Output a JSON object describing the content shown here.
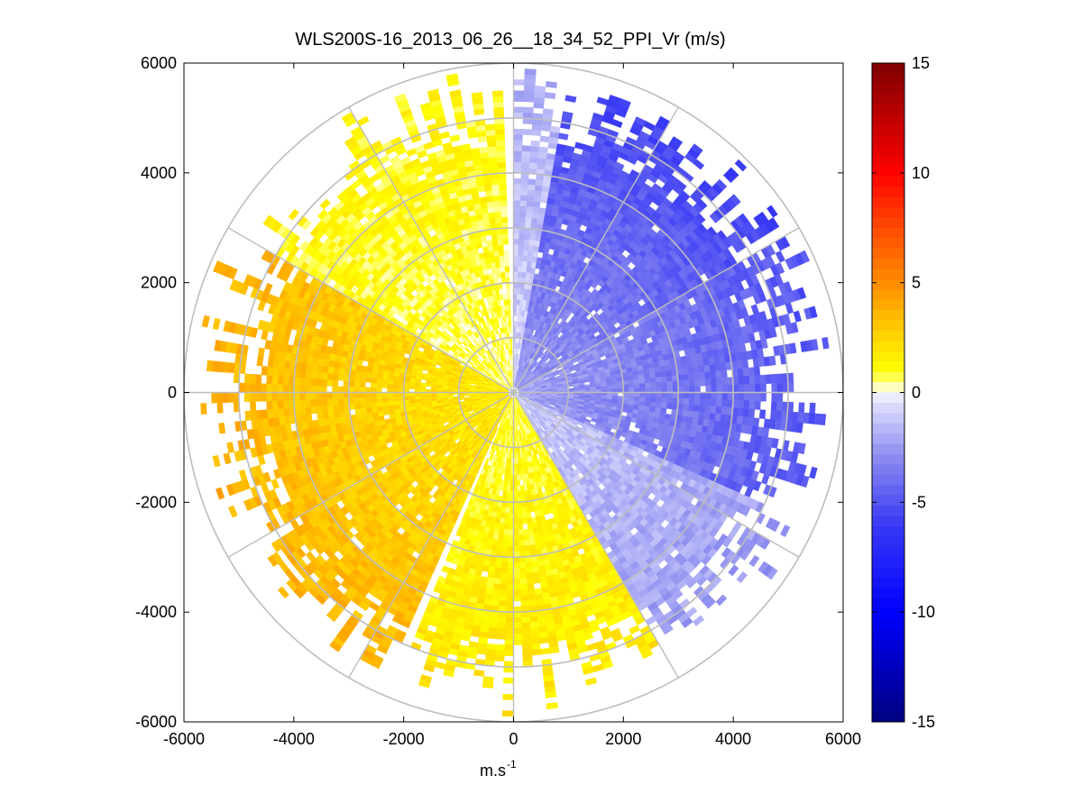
{
  "chart_data": {
    "type": "heatmap",
    "subtype": "polar-ppi-scan",
    "title": "WLS200S-16_2013_06_26__18_34_52_PPI_Vr (m/s)",
    "xlabel": "m.s",
    "xlabel_superscript": "-1",
    "ylabel": "",
    "xlim": [
      -6000,
      6000
    ],
    "ylim": [
      -6000,
      6000
    ],
    "x_ticks": [
      -6000,
      -4000,
      -2000,
      0,
      2000,
      4000,
      6000
    ],
    "y_ticks": [
      -6000,
      -4000,
      -2000,
      0,
      2000,
      4000,
      6000
    ],
    "x_tick_labels": [
      "-6000",
      "-4000",
      "-2000",
      "0",
      "2000",
      "4000",
      "6000"
    ],
    "y_tick_labels": [
      "-6000",
      "-4000",
      "-2000",
      "0",
      "2000",
      "4000",
      "6000"
    ],
    "grid": true,
    "polar_grid": {
      "ring_radii_m": [
        1000,
        2000,
        3000,
        4000,
        5000,
        6000
      ],
      "spoke_angles_deg": [
        0,
        30,
        60,
        90,
        120,
        150,
        180,
        210,
        240,
        270,
        300,
        330
      ]
    },
    "field": {
      "name": "Radial velocity Vr",
      "units": "m/s",
      "max_range_m": 5900,
      "gate_spacing_m": 100,
      "beam_width_deg": 2,
      "sector_mean_velocity": [
        {
          "az_start_deg": 0,
          "az_end_deg": 10,
          "mean_vr": -1.5
        },
        {
          "az_start_deg": 10,
          "az_end_deg": 60,
          "mean_vr": -4.5
        },
        {
          "az_start_deg": 60,
          "az_end_deg": 115,
          "mean_vr": -4.0
        },
        {
          "az_start_deg": 115,
          "az_end_deg": 150,
          "mean_vr": -2.0
        },
        {
          "az_start_deg": 150,
          "az_end_deg": 205,
          "mean_vr": 1.5
        },
        {
          "az_start_deg": 205,
          "az_end_deg": 300,
          "mean_vr": 3.0
        },
        {
          "az_start_deg": 300,
          "az_end_deg": 360,
          "mean_vr": 1.0
        }
      ],
      "data_gaps_az_deg": [
        [
          -2,
          0
        ],
        [
          202,
          205
        ]
      ]
    },
    "colorbar": {
      "min": -15,
      "max": 15,
      "ticks": [
        -15,
        -10,
        -5,
        0,
        5,
        10,
        15
      ],
      "tick_labels": [
        "-15",
        "-10",
        "-5",
        "0",
        "5",
        "10",
        "15"
      ],
      "stops": [
        {
          "value": -15,
          "color": "#00007f"
        },
        {
          "value": -10,
          "color": "#0000ff"
        },
        {
          "value": -6,
          "color": "#3a3af5"
        },
        {
          "value": -3,
          "color": "#8a8af0"
        },
        {
          "value": -0.3,
          "color": "#e6e6ff"
        },
        {
          "value": 0,
          "color": "#ffffff"
        },
        {
          "value": 0.3,
          "color": "#ffffb0"
        },
        {
          "value": 1,
          "color": "#ffff00"
        },
        {
          "value": 3,
          "color": "#ffc800"
        },
        {
          "value": 5,
          "color": "#ff8c00"
        },
        {
          "value": 8,
          "color": "#ff3c00"
        },
        {
          "value": 10,
          "color": "#ff0000"
        },
        {
          "value": 15,
          "color": "#7f0000"
        }
      ]
    }
  }
}
